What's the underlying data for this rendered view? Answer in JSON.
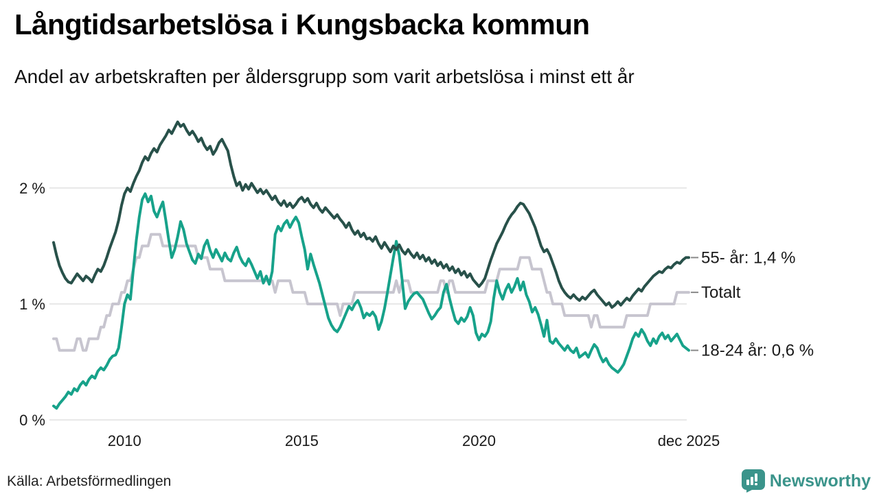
{
  "header": {
    "title": "Långtidsarbetslösa i Kungsbacka kommun",
    "subtitle": "Andel av arbetskraften per åldersgrupp som varit arbetslösa i minst ett år"
  },
  "chart_data": {
    "type": "line",
    "unit": "%",
    "x_start": "jan 2008",
    "x_end": "dec 2025",
    "frequency": "monthly",
    "ylim": [
      0,
      2.75
    ],
    "grid": "horizontal",
    "legend_position": "right-end-labels",
    "y_ticks": [
      {
        "value": 0,
        "label": "0 %"
      },
      {
        "value": 1,
        "label": "1 %"
      },
      {
        "value": 2,
        "label": "2 %"
      }
    ],
    "x_ticks": [
      {
        "month_index": 24,
        "label": "2010"
      },
      {
        "month_index": 84,
        "label": "2015"
      },
      {
        "month_index": 144,
        "label": "2020"
      },
      {
        "month_index": 215,
        "label": "dec 2025"
      }
    ],
    "series": [
      {
        "name": "Totalt",
        "color": "#c7c5cf",
        "end_label": "Totalt",
        "values": [
          0.7,
          0.7,
          0.6,
          0.6,
          0.6,
          0.6,
          0.6,
          0.6,
          0.7,
          0.7,
          0.6,
          0.6,
          0.7,
          0.7,
          0.7,
          0.7,
          0.8,
          0.8,
          0.9,
          0.9,
          1.0,
          1.0,
          1.0,
          1.1,
          1.1,
          1.2,
          1.2,
          1.3,
          1.4,
          1.4,
          1.5,
          1.5,
          1.5,
          1.6,
          1.6,
          1.6,
          1.6,
          1.5,
          1.5,
          1.5,
          1.5,
          1.5,
          1.5,
          1.5,
          1.5,
          1.5,
          1.5,
          1.5,
          1.5,
          1.4,
          1.4,
          1.4,
          1.4,
          1.3,
          1.3,
          1.3,
          1.3,
          1.3,
          1.2,
          1.2,
          1.2,
          1.2,
          1.2,
          1.2,
          1.2,
          1.2,
          1.2,
          1.2,
          1.2,
          1.2,
          1.2,
          1.2,
          1.2,
          1.2,
          1.2,
          1.1,
          1.2,
          1.2,
          1.2,
          1.2,
          1.2,
          1.1,
          1.1,
          1.1,
          1.1,
          1.1,
          1.0,
          1.0,
          1.0,
          1.0,
          1.0,
          1.0,
          1.0,
          1.0,
          1.0,
          1.0,
          1.0,
          0.9,
          1.0,
          1.0,
          1.0,
          1.0,
          1.1,
          1.1,
          1.1,
          1.1,
          1.1,
          1.1,
          1.1,
          1.1,
          1.1,
          1.1,
          1.1,
          1.1,
          1.1,
          1.1,
          1.2,
          1.1,
          1.2,
          1.2,
          1.2,
          1.1,
          1.1,
          1.1,
          1.1,
          1.1,
          1.1,
          1.1,
          1.1,
          1.1,
          1.1,
          1.2,
          1.2,
          1.1,
          1.2,
          1.2,
          1.1,
          1.1,
          1.1,
          1.1,
          1.1,
          1.1,
          1.1,
          1.1,
          1.1,
          1.1,
          1.1,
          1.2,
          1.2,
          1.2,
          1.2,
          1.3,
          1.3,
          1.3,
          1.3,
          1.3,
          1.3,
          1.3,
          1.4,
          1.4,
          1.4,
          1.4,
          1.3,
          1.3,
          1.3,
          1.3,
          1.2,
          1.1,
          1.1,
          1.0,
          1.0,
          1.0,
          1.0,
          0.9,
          0.9,
          0.9,
          0.9,
          0.9,
          0.9,
          0.9,
          0.9,
          0.9,
          0.8,
          0.9,
          0.9,
          0.8,
          0.8,
          0.8,
          0.8,
          0.8,
          0.8,
          0.8,
          0.8,
          0.8,
          0.9,
          0.9,
          0.9,
          0.9,
          0.9,
          0.9,
          0.9,
          0.9,
          1.0,
          1.0,
          1.0,
          1.0,
          1.0,
          1.0,
          1.0,
          1.0,
          1.0,
          1.1,
          1.1,
          1.1,
          1.1,
          1.1
        ]
      },
      {
        "name": "18-24 år",
        "color": "#17a28a",
        "end_label": "18-24 år: 0,6 %",
        "values": [
          0.12,
          0.1,
          0.14,
          0.17,
          0.2,
          0.24,
          0.22,
          0.27,
          0.25,
          0.3,
          0.33,
          0.3,
          0.35,
          0.38,
          0.36,
          0.42,
          0.45,
          0.43,
          0.47,
          0.52,
          0.55,
          0.56,
          0.62,
          0.8,
          1.0,
          1.08,
          1.04,
          1.3,
          1.55,
          1.75,
          1.9,
          1.95,
          1.88,
          1.93,
          1.8,
          1.75,
          1.82,
          1.88,
          1.72,
          1.55,
          1.4,
          1.47,
          1.58,
          1.71,
          1.64,
          1.52,
          1.45,
          1.38,
          1.35,
          1.43,
          1.39,
          1.5,
          1.55,
          1.46,
          1.4,
          1.47,
          1.42,
          1.37,
          1.44,
          1.39,
          1.37,
          1.44,
          1.49,
          1.41,
          1.36,
          1.33,
          1.39,
          1.34,
          1.28,
          1.22,
          1.28,
          1.18,
          1.24,
          1.17,
          1.28,
          1.6,
          1.67,
          1.63,
          1.69,
          1.72,
          1.66,
          1.71,
          1.75,
          1.7,
          1.58,
          1.47,
          1.3,
          1.43,
          1.34,
          1.26,
          1.18,
          1.08,
          0.98,
          0.88,
          0.82,
          0.78,
          0.76,
          0.8,
          0.86,
          0.92,
          0.98,
          0.95,
          1.0,
          1.03,
          0.97,
          0.88,
          0.92,
          0.9,
          0.93,
          0.89,
          0.78,
          0.85,
          0.96,
          1.1,
          1.25,
          1.4,
          1.54,
          1.42,
          1.2,
          0.96,
          1.02,
          1.06,
          1.09,
          1.1,
          1.07,
          1.04,
          0.98,
          0.92,
          0.87,
          0.9,
          0.94,
          0.97,
          1.1,
          1.17,
          1.05,
          0.95,
          0.86,
          0.83,
          0.88,
          0.85,
          0.89,
          0.97,
          0.9,
          0.75,
          0.69,
          0.74,
          0.72,
          0.76,
          0.85,
          1.05,
          1.2,
          1.1,
          1.04,
          1.12,
          1.17,
          1.1,
          1.15,
          1.22,
          1.12,
          1.19,
          1.08,
          1.02,
          0.93,
          0.97,
          0.91,
          0.82,
          0.72,
          0.86,
          0.68,
          0.66,
          0.7,
          0.66,
          0.63,
          0.6,
          0.64,
          0.6,
          0.58,
          0.62,
          0.54,
          0.56,
          0.58,
          0.54,
          0.6,
          0.65,
          0.62,
          0.55,
          0.5,
          0.53,
          0.48,
          0.45,
          0.43,
          0.41,
          0.44,
          0.48,
          0.55,
          0.62,
          0.7,
          0.75,
          0.72,
          0.78,
          0.74,
          0.68,
          0.64,
          0.7,
          0.66,
          0.72,
          0.75,
          0.7,
          0.73,
          0.68,
          0.71,
          0.74,
          0.69,
          0.64,
          0.62,
          0.6
        ]
      },
      {
        "name": "55- år",
        "color": "#28514a",
        "end_label": "55- år: 1,4 %",
        "values": [
          1.53,
          1.42,
          1.33,
          1.27,
          1.22,
          1.19,
          1.18,
          1.22,
          1.26,
          1.23,
          1.2,
          1.24,
          1.22,
          1.19,
          1.25,
          1.3,
          1.28,
          1.33,
          1.4,
          1.48,
          1.55,
          1.62,
          1.72,
          1.85,
          1.95,
          2.0,
          1.97,
          2.04,
          2.1,
          2.15,
          2.22,
          2.27,
          2.24,
          2.3,
          2.34,
          2.31,
          2.37,
          2.41,
          2.45,
          2.5,
          2.47,
          2.52,
          2.57,
          2.53,
          2.55,
          2.5,
          2.46,
          2.49,
          2.45,
          2.4,
          2.43,
          2.37,
          2.33,
          2.36,
          2.29,
          2.33,
          2.39,
          2.42,
          2.37,
          2.32,
          2.2,
          2.1,
          2.02,
          2.05,
          1.98,
          2.03,
          1.99,
          2.04,
          2.0,
          1.96,
          1.99,
          1.95,
          1.98,
          1.94,
          1.9,
          1.93,
          1.88,
          1.85,
          1.89,
          1.84,
          1.87,
          1.83,
          1.86,
          1.9,
          1.92,
          1.88,
          1.91,
          1.86,
          1.83,
          1.87,
          1.82,
          1.79,
          1.83,
          1.8,
          1.77,
          1.74,
          1.77,
          1.73,
          1.7,
          1.66,
          1.7,
          1.64,
          1.6,
          1.63,
          1.58,
          1.61,
          1.56,
          1.57,
          1.54,
          1.58,
          1.52,
          1.48,
          1.53,
          1.49,
          1.45,
          1.5,
          1.47,
          1.51,
          1.46,
          1.43,
          1.47,
          1.43,
          1.4,
          1.44,
          1.39,
          1.42,
          1.37,
          1.4,
          1.35,
          1.38,
          1.33,
          1.36,
          1.31,
          1.34,
          1.29,
          1.32,
          1.27,
          1.3,
          1.25,
          1.28,
          1.23,
          1.26,
          1.21,
          1.18,
          1.15,
          1.18,
          1.22,
          1.3,
          1.38,
          1.45,
          1.52,
          1.57,
          1.62,
          1.68,
          1.73,
          1.77,
          1.8,
          1.84,
          1.87,
          1.86,
          1.82,
          1.78,
          1.72,
          1.66,
          1.58,
          1.5,
          1.45,
          1.47,
          1.42,
          1.35,
          1.28,
          1.2,
          1.14,
          1.1,
          1.07,
          1.05,
          1.08,
          1.05,
          1.03,
          1.06,
          1.04,
          1.07,
          1.1,
          1.12,
          1.08,
          1.05,
          1.02,
          0.99,
          1.01,
          0.97,
          0.99,
          1.02,
          0.99,
          1.02,
          1.05,
          1.03,
          1.07,
          1.1,
          1.13,
          1.11,
          1.15,
          1.18,
          1.21,
          1.24,
          1.26,
          1.28,
          1.27,
          1.3,
          1.32,
          1.31,
          1.34,
          1.36,
          1.35,
          1.38,
          1.4,
          1.4
        ]
      }
    ],
    "style": {
      "gridline_color": "#e8e8e8",
      "tick_text_color": "#1a1a1a",
      "legend_dash_color": "#888888"
    }
  },
  "footer": {
    "source": "Källa: Arbetsförmedlingen"
  },
  "branding": {
    "name": "Newsworthy",
    "icon": "newsworthy-badge-icon",
    "color": "#3b948b"
  }
}
